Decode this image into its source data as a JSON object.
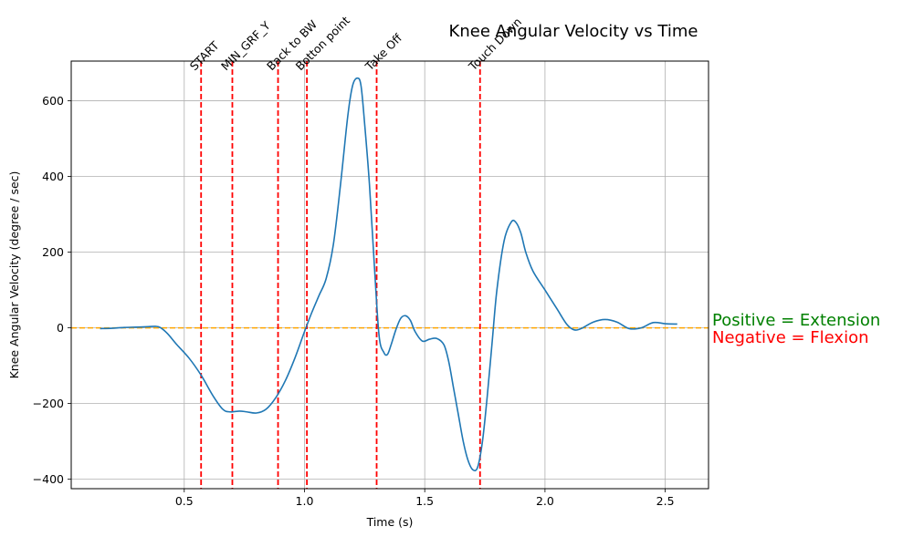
{
  "chart_data": {
    "type": "line",
    "title": "Knee Angular Velocity vs Time",
    "xlabel": "Time (s)",
    "ylabel": "Knee Angular Velocity (degree / sec)",
    "xlim": [
      0.03,
      2.68
    ],
    "ylim": [
      -425,
      705
    ],
    "x_ticks": [
      0.5,
      1.0,
      1.5,
      2.0,
      2.5
    ],
    "x_tick_labels": [
      "0.5",
      "1.0",
      "1.5",
      "2.0",
      "2.5"
    ],
    "y_ticks": [
      -400,
      -200,
      0,
      200,
      400,
      600
    ],
    "y_tick_labels": [
      "−400",
      "−200",
      "0",
      "200",
      "400",
      "600"
    ],
    "grid": true,
    "series": [
      {
        "color": "#1f77b4",
        "x": [
          0.15,
          0.2,
          0.25,
          0.3,
          0.35,
          0.38,
          0.4,
          0.43,
          0.47,
          0.52,
          0.57,
          0.62,
          0.66,
          0.69,
          0.73,
          0.76,
          0.8,
          0.84,
          0.88,
          0.92,
          0.96,
          1.0,
          1.03,
          1.06,
          1.09,
          1.12,
          1.15,
          1.18,
          1.2,
          1.22,
          1.235,
          1.25,
          1.27,
          1.29,
          1.31,
          1.33,
          1.345,
          1.36,
          1.38,
          1.4,
          1.42,
          1.44,
          1.46,
          1.49,
          1.52,
          1.55,
          1.58,
          1.6,
          1.62,
          1.64,
          1.66,
          1.68,
          1.7,
          1.72,
          1.74,
          1.76,
          1.78,
          1.8,
          1.83,
          1.86,
          1.88,
          1.9,
          1.92,
          1.95,
          2.0,
          2.05,
          2.09,
          2.12,
          2.15,
          2.2,
          2.25,
          2.3,
          2.35,
          2.4,
          2.45,
          2.5,
          2.55
        ],
        "y": [
          -2,
          -1,
          1,
          2,
          3,
          4,
          1,
          -15,
          -45,
          -80,
          -125,
          -180,
          -215,
          -222,
          -220,
          -222,
          -225,
          -215,
          -185,
          -140,
          -80,
          -10,
          40,
          85,
          130,
          220,
          380,
          560,
          640,
          660,
          640,
          540,
          380,
          170,
          -20,
          -65,
          -70,
          -45,
          -5,
          25,
          32,
          20,
          -10,
          -35,
          -30,
          -28,
          -45,
          -90,
          -160,
          -230,
          -300,
          -350,
          -375,
          -368,
          -300,
          -180,
          -40,
          100,
          230,
          280,
          278,
          250,
          200,
          150,
          100,
          50,
          10,
          -5,
          -2,
          15,
          22,
          15,
          -2,
          0,
          14,
          11,
          10
        ]
      }
    ],
    "reference_lines": [
      {
        "orientation": "horizontal",
        "y": 0,
        "color": "#ffa500",
        "style": "dashed"
      }
    ],
    "event_lines": [
      {
        "x": 0.57,
        "label": "START"
      },
      {
        "x": 0.7,
        "label": "MIN_GRF_Y"
      },
      {
        "x": 0.89,
        "label": "Back to BW"
      },
      {
        "x": 1.01,
        "label": "Botton point"
      },
      {
        "x": 1.3,
        "label": "Take Off"
      },
      {
        "x": 1.73,
        "label": "Touch Down"
      }
    ],
    "event_line_color": "#ff0000",
    "annotations": [
      {
        "text": "Positive = Extension",
        "color": "#008000"
      },
      {
        "text": "Negative = Flexion",
        "color": "#ff0000"
      }
    ]
  }
}
